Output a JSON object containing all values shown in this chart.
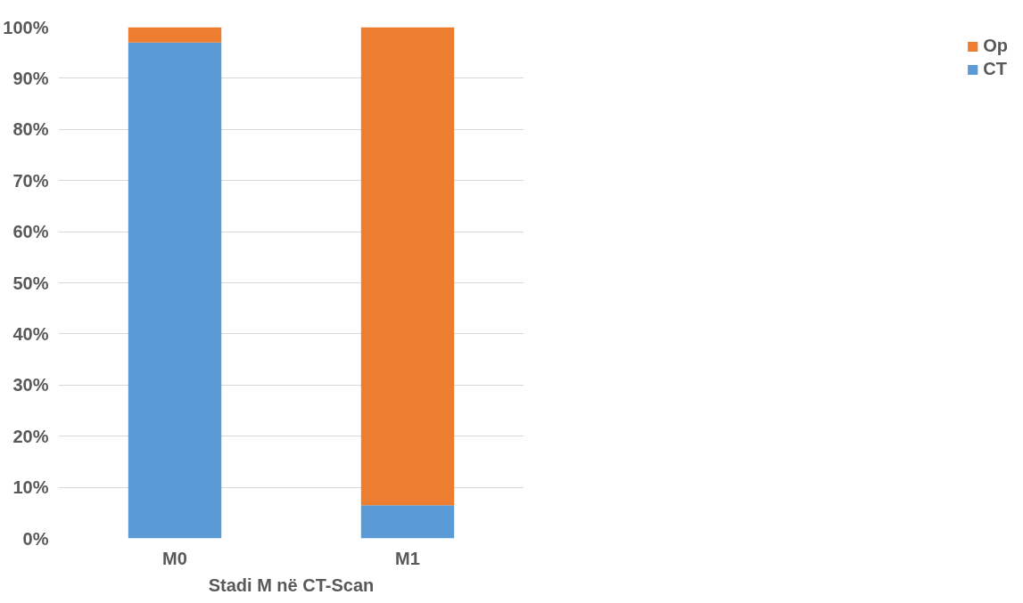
{
  "chart_data": {
    "type": "bar",
    "stacked": true,
    "xlabel": "Stadi M në CT-Scan",
    "categories": [
      "M0",
      "M1"
    ],
    "series": [
      {
        "name": "CT",
        "color": "#5b9bd5",
        "values": [
          97,
          6.5
        ]
      },
      {
        "name": "Op",
        "color": "#ed7d31",
        "values": [
          3,
          93.5
        ]
      }
    ],
    "ylim": [
      0,
      100
    ],
    "yticks": [
      {
        "value": 0,
        "label": "0%"
      },
      {
        "value": 10,
        "label": "10%"
      },
      {
        "value": 20,
        "label": "20%"
      },
      {
        "value": 30,
        "label": "30%"
      },
      {
        "value": 40,
        "label": "40%"
      },
      {
        "value": 50,
        "label": "50%"
      },
      {
        "value": 60,
        "label": "60%"
      },
      {
        "value": 70,
        "label": "70%"
      },
      {
        "value": 80,
        "label": "80%"
      },
      {
        "value": 90,
        "label": "90%"
      },
      {
        "value": 100,
        "label": "100%"
      }
    ],
    "grid": "y",
    "legend": "right"
  }
}
